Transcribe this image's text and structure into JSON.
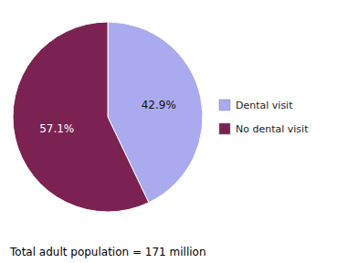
{
  "chart_data": {
    "type": "pie",
    "categories": [
      "Dental visit",
      "No dental visit"
    ],
    "values": [
      42.9,
      57.1
    ],
    "value_labels": [
      "42.9%",
      "57.1%"
    ],
    "colors": [
      "#aaaaee",
      "#7b2252"
    ],
    "data_labels": true,
    "legend": "right",
    "annotations": [
      "Total adult population = 171 million"
    ]
  }
}
